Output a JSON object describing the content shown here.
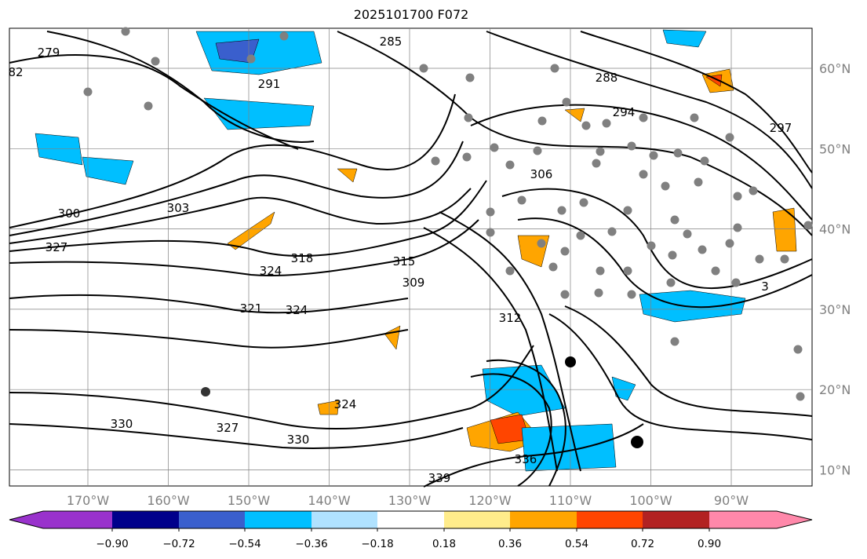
{
  "title": "2025101700 F072",
  "lon_ticks": [
    "170°W",
    "160°W",
    "150°W",
    "140°W",
    "130°W",
    "120°W",
    "110°W",
    "100°W",
    "90°W"
  ],
  "lat_ticks": [
    "60°N",
    "50°N",
    "40°N",
    "30°N",
    "20°N",
    "10°N"
  ],
  "colorbar": {
    "colors": [
      "#9932cc",
      "#00008b",
      "#3a5fcd",
      "#00bfff",
      "#b0e2ff",
      "#ffffff",
      "#ffec8b",
      "#ffa500",
      "#ff4500",
      "#b22222",
      "#ff88aa"
    ],
    "labels": [
      "−0.90",
      "−0.72",
      "−0.54",
      "−0.36",
      "−0.18",
      "0.18",
      "0.36",
      "0.54",
      "0.72",
      "0.90"
    ]
  },
  "contour_labels": [
    "279",
    "82",
    "285",
    "291",
    "288",
    "294",
    "297",
    "300",
    "303",
    "306",
    "327",
    "324",
    "318",
    "321",
    "315",
    "309",
    "312",
    "324",
    "330",
    "327",
    "330",
    "324",
    "336",
    "339",
    "3"
  ],
  "colors": {
    "contour": "#000000",
    "station_dot": "#808080",
    "grid": "#808080"
  }
}
